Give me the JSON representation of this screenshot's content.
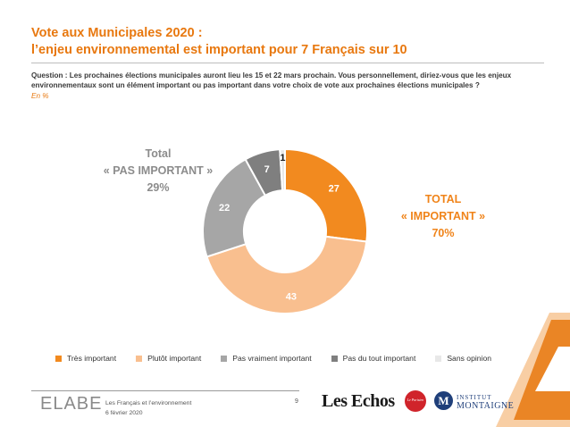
{
  "header": {
    "title_line1": "Vote aux Municipales 2020 :",
    "title_line2": "l’enjeu environnemental est important pour 7 Français sur 10",
    "question": "Question : Les prochaines élections municipales auront lieu les 15 et 22 mars prochain. Vous personnellement, diriez-vous que les enjeux environnementaux sont un élément important ou pas important dans votre choix de vote aux prochaines élections municipales ?",
    "unit": "En %"
  },
  "callouts": {
    "left": [
      "Total",
      "« PAS IMPORTANT »",
      "29%"
    ],
    "right": [
      "TOTAL",
      "« IMPORTANT »",
      "70%"
    ]
  },
  "chart_data": {
    "type": "pie",
    "variant": "donut",
    "categories": [
      "Très important",
      "Plutôt important",
      "Pas vraiment important",
      "Pas du tout important",
      "Sans opinion"
    ],
    "values": [
      27,
      43,
      22,
      7,
      1
    ],
    "colors": [
      "#f28a1f",
      "#f9bf8f",
      "#a6a6a6",
      "#7f7f7f",
      "#e8e8e8"
    ],
    "label_colors": [
      "#ffffff",
      "#ffffff",
      "#ffffff",
      "#ffffff",
      "#1f1f1f"
    ],
    "legend_position": "bottom"
  },
  "footer": {
    "logo": "ELABE",
    "subtitle": "Les Français et l’environnement",
    "date": "6 février 2020",
    "page_number": "9",
    "partner1": "Les Echos",
    "partner2": "Le Parisien",
    "partner3_letter": "M",
    "partner3_line1": "INSTITUT",
    "partner3_line2": "MONTAIGNE"
  }
}
